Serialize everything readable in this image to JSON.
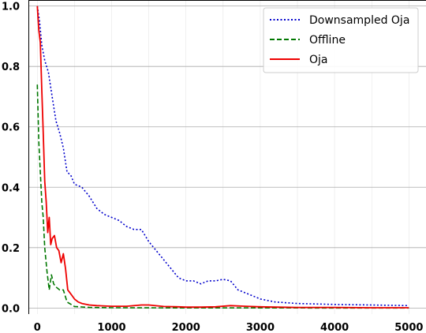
{
  "chart_data": {
    "type": "line",
    "title": "",
    "xlabel": "",
    "ylabel": "",
    "xlim": [
      -120,
      5230
    ],
    "ylim": [
      -0.02,
      1.02
    ],
    "x_ticks": [
      0,
      1000,
      2000,
      3000,
      4000,
      5000
    ],
    "y_ticks": [
      0.0,
      0.2,
      0.4,
      0.6,
      0.8,
      1.0
    ],
    "x_tick_labels": [
      "0",
      "1000",
      "2000",
      "3000",
      "4000",
      "5000"
    ],
    "y_tick_labels": [
      "0.0",
      "0.2",
      "0.4",
      "0.6",
      "0.8",
      "1.0"
    ],
    "grid": true,
    "legend_position": "top-right",
    "series": [
      {
        "name": "Downsampled Oja",
        "color": "#0000cc",
        "style": "dotted",
        "x": [
          0,
          30,
          60,
          100,
          150,
          200,
          250,
          300,
          350,
          400,
          450,
          500,
          600,
          700,
          800,
          900,
          1000,
          1100,
          1200,
          1300,
          1400,
          1500,
          1600,
          1700,
          1800,
          1900,
          2000,
          2100,
          2200,
          2300,
          2400,
          2500,
          2600,
          2700,
          2800,
          2900,
          3000,
          3200,
          3500,
          4000,
          4500,
          5000
        ],
        "y": [
          1.0,
          0.95,
          0.87,
          0.82,
          0.78,
          0.7,
          0.62,
          0.58,
          0.53,
          0.45,
          0.44,
          0.41,
          0.4,
          0.37,
          0.33,
          0.31,
          0.3,
          0.29,
          0.27,
          0.26,
          0.26,
          0.22,
          0.19,
          0.16,
          0.13,
          0.1,
          0.09,
          0.09,
          0.08,
          0.09,
          0.09,
          0.095,
          0.09,
          0.06,
          0.05,
          0.04,
          0.03,
          0.02,
          0.015,
          0.012,
          0.01,
          0.008
        ]
      },
      {
        "name": "Offline",
        "color": "#007700",
        "style": "dashed",
        "x": [
          0,
          20,
          40,
          60,
          80,
          100,
          130,
          160,
          190,
          220,
          250,
          300,
          350,
          400,
          500,
          700,
          1000,
          2000,
          3000,
          4000,
          5000
        ],
        "y": [
          0.74,
          0.55,
          0.45,
          0.35,
          0.3,
          0.2,
          0.12,
          0.06,
          0.11,
          0.08,
          0.07,
          0.06,
          0.06,
          0.02,
          0.005,
          0.002,
          0.001,
          0.0005,
          0.0003,
          0.0002,
          0.0001
        ]
      },
      {
        "name": "Oja",
        "color": "#ee0000",
        "style": "solid",
        "x": [
          0,
          20,
          40,
          60,
          80,
          100,
          120,
          140,
          160,
          180,
          200,
          230,
          260,
          290,
          320,
          350,
          380,
          410,
          440,
          470,
          500,
          550,
          600,
          700,
          800,
          1000,
          1200,
          1400,
          1500,
          1700,
          1900,
          2000,
          2200,
          2400,
          2600,
          2800,
          3000,
          3500,
          4000,
          4500,
          5000
        ],
        "y": [
          1.0,
          0.92,
          0.88,
          0.72,
          0.58,
          0.42,
          0.35,
          0.25,
          0.3,
          0.21,
          0.23,
          0.24,
          0.2,
          0.19,
          0.15,
          0.18,
          0.13,
          0.06,
          0.05,
          0.04,
          0.03,
          0.02,
          0.015,
          0.01,
          0.008,
          0.006,
          0.006,
          0.01,
          0.01,
          0.005,
          0.004,
          0.003,
          0.003,
          0.004,
          0.008,
          0.006,
          0.004,
          0.002,
          0.002,
          0.001,
          0.001
        ]
      }
    ]
  }
}
